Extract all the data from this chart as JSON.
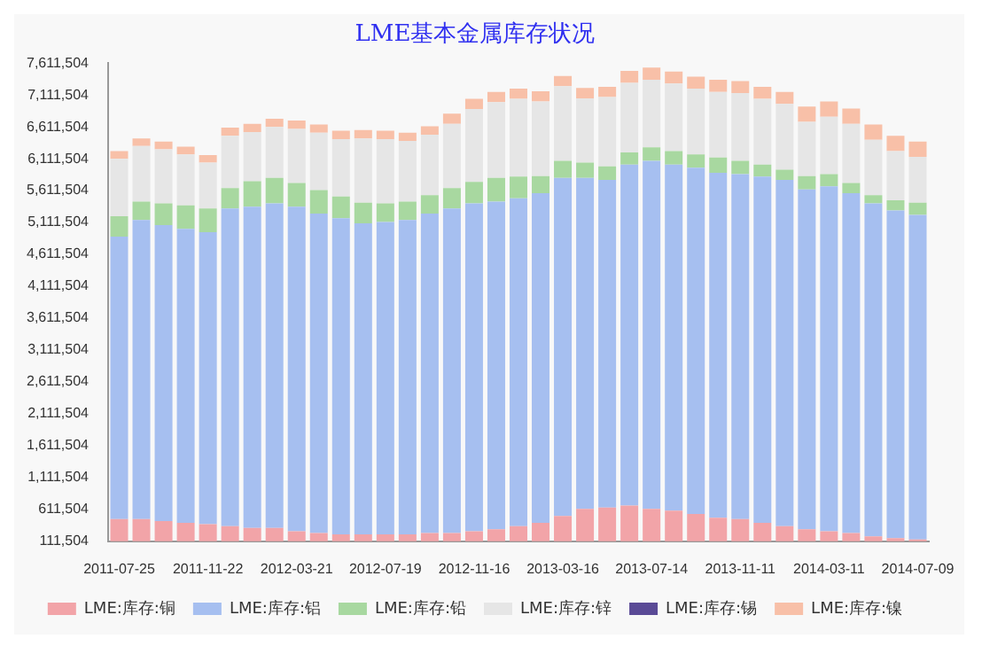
{
  "chart_data": {
    "type": "bar",
    "title": "LME基本金属库存状况",
    "stacked": true,
    "legend": "bottom",
    "ylim": [
      111504,
      7611504
    ],
    "yticks": [
      {
        "value": 111504,
        "label": "111,504"
      },
      {
        "value": 611504,
        "label": "611,504"
      },
      {
        "value": 1111504,
        "label": "1,111,504"
      },
      {
        "value": 1611504,
        "label": "1,611,504"
      },
      {
        "value": 2111504,
        "label": "2,111,504"
      },
      {
        "value": 2611504,
        "label": "2,611,504"
      },
      {
        "value": 3111504,
        "label": "3,111,504"
      },
      {
        "value": 3611504,
        "label": "3,611,504"
      },
      {
        "value": 4111504,
        "label": "4,111,504"
      },
      {
        "value": 4611504,
        "label": "4,611,504"
      },
      {
        "value": 5111504,
        "label": "5,111,504"
      },
      {
        "value": 5611504,
        "label": "5,611,504"
      },
      {
        "value": 6111504,
        "label": "6,111,504"
      },
      {
        "value": 6611504,
        "label": "6,611,504"
      },
      {
        "value": 7111504,
        "label": "7,111,504"
      },
      {
        "value": 7611504,
        "label": "7,611,504"
      }
    ],
    "categories": [
      "2011-07-25",
      null,
      null,
      null,
      "2011-11-22",
      null,
      null,
      null,
      "2012-03-21",
      null,
      null,
      null,
      "2012-07-19",
      null,
      null,
      null,
      "2012-11-16",
      null,
      null,
      null,
      "2013-03-16",
      null,
      null,
      null,
      "2013-07-14",
      null,
      null,
      null,
      "2013-11-11",
      null,
      null,
      null,
      "2014-03-11",
      null,
      null,
      null,
      "2014-07-09"
    ],
    "series": [
      {
        "name": "LME:库存:铜",
        "color": "#f2a4a8",
        "values": [
          460000,
          460000,
          430000,
          400000,
          380000,
          350000,
          320000,
          320000,
          270000,
          240000,
          220000,
          220000,
          220000,
          220000,
          240000,
          240000,
          270000,
          300000,
          350000,
          400000,
          510000,
          620000,
          640000,
          670000,
          620000,
          590000,
          540000,
          480000,
          460000,
          400000,
          350000,
          300000,
          270000,
          240000,
          190000,
          160000,
          140000
        ]
      },
      {
        "name": "LME:库存:铝",
        "color": "#a6bff0",
        "values": [
          4430000,
          4690000,
          4640000,
          4610000,
          4580000,
          4980000,
          5040000,
          5090000,
          5090000,
          5010000,
          4960000,
          4880000,
          4900000,
          4930000,
          5010000,
          5090000,
          5140000,
          5140000,
          5140000,
          5170000,
          5300000,
          5190000,
          5140000,
          5350000,
          5460000,
          5430000,
          5430000,
          5410000,
          5410000,
          5430000,
          5430000,
          5330000,
          5410000,
          5330000,
          5220000,
          5140000,
          5090000
        ]
      },
      {
        "name": "LME:库存:铅",
        "color": "#a8d8a0",
        "values": [
          320000,
          290000,
          340000,
          370000,
          370000,
          320000,
          400000,
          400000,
          370000,
          370000,
          340000,
          320000,
          290000,
          290000,
          290000,
          320000,
          340000,
          370000,
          340000,
          270000,
          270000,
          240000,
          210000,
          190000,
          210000,
          210000,
          210000,
          240000,
          210000,
          190000,
          160000,
          210000,
          190000,
          160000,
          130000,
          160000,
          190000
        ]
      },
      {
        "name": "LME:库存:锌",
        "color": "#e6e6e6",
        "values": [
          900000,
          870000,
          850000,
          800000,
          720000,
          820000,
          770000,
          800000,
          850000,
          900000,
          900000,
          1010000,
          1010000,
          950000,
          950000,
          1010000,
          1140000,
          1190000,
          1220000,
          1170000,
          1170000,
          1010000,
          1090000,
          1090000,
          1060000,
          1060000,
          1030000,
          1030000,
          1060000,
          1030000,
          1030000,
          850000,
          900000,
          930000,
          870000,
          770000,
          720000
        ]
      },
      {
        "name": "LME:库存:锡",
        "color": "#5a4a96",
        "values": [
          null,
          null,
          null,
          null,
          null,
          null,
          null,
          null,
          null,
          null,
          null,
          null,
          null,
          null,
          null,
          null,
          null,
          null,
          null,
          null,
          null,
          null,
          null,
          null,
          null,
          null,
          null,
          null,
          null,
          null,
          null,
          null,
          null,
          null,
          null,
          null,
          null
        ]
      },
      {
        "name": "LME:库存:镍",
        "color": "#f8c0a8",
        "values": [
          120000,
          120000,
          120000,
          120000,
          120000,
          130000,
          130000,
          130000,
          130000,
          130000,
          130000,
          130000,
          130000,
          130000,
          130000,
          160000,
          160000,
          160000,
          160000,
          160000,
          160000,
          160000,
          160000,
          190000,
          190000,
          190000,
          190000,
          190000,
          190000,
          190000,
          190000,
          240000,
          240000,
          240000,
          240000,
          240000,
          240000
        ]
      }
    ]
  }
}
